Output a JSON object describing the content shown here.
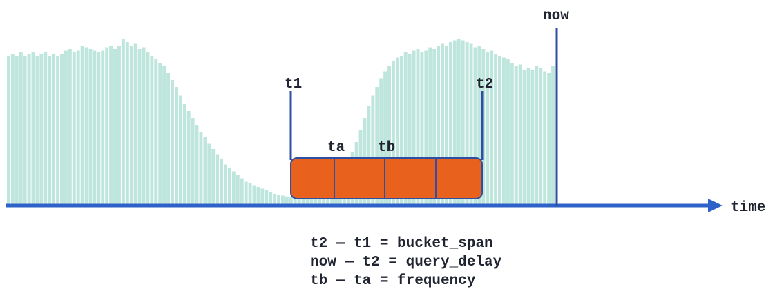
{
  "labels": {
    "now": "now",
    "t1": "t1",
    "t2": "t2",
    "ta": "ta",
    "tb": "tb",
    "time": "time"
  },
  "equations": [
    "t2 — t1 = bucket_span",
    "now — t2 = query_delay",
    "tb — ta = frequency"
  ],
  "histogram": {
    "bar_color": "#bfe6dc",
    "bar_levels": [
      0.86,
      0.87,
      0.86,
      0.88,
      0.86,
      0.87,
      0.88,
      0.86,
      0.87,
      0.88,
      0.86,
      0.87,
      0.86,
      0.87,
      0.89,
      0.9,
      0.88,
      0.89,
      0.92,
      0.91,
      0.9,
      0.89,
      0.88,
      0.89,
      0.91,
      0.92,
      0.9,
      0.92,
      0.96,
      0.94,
      0.92,
      0.93,
      0.9,
      0.91,
      0.88,
      0.86,
      0.84,
      0.82,
      0.8,
      0.76,
      0.72,
      0.68,
      0.63,
      0.58,
      0.54,
      0.5,
      0.46,
      0.42,
      0.39,
      0.35,
      0.32,
      0.29,
      0.26,
      0.23,
      0.21,
      0.19,
      0.17,
      0.15,
      0.13,
      0.12,
      0.11,
      0.1,
      0.09,
      0.08,
      0.07,
      0.06,
      0.055,
      0.05,
      0.045,
      0.04,
      0.04,
      0.04,
      0.04,
      0.04,
      0.045,
      0.05,
      0.06,
      0.07,
      0.08,
      0.1,
      0.12,
      0.15,
      0.19,
      0.24,
      0.3,
      0.36,
      0.43,
      0.5,
      0.57,
      0.63,
      0.68,
      0.73,
      0.77,
      0.8,
      0.83,
      0.85,
      0.86,
      0.88,
      0.87,
      0.89,
      0.9,
      0.88,
      0.89,
      0.91,
      0.9,
      0.92,
      0.93,
      0.92,
      0.94,
      0.95,
      0.96,
      0.95,
      0.94,
      0.93,
      0.91,
      0.92,
      0.9,
      0.88,
      0.89,
      0.87,
      0.86,
      0.85,
      0.84,
      0.82,
      0.8,
      0.81,
      0.78,
      0.79,
      0.78,
      0.8,
      0.79,
      0.77,
      0.76,
      0.8
    ]
  },
  "colors": {
    "axis": "#2f62c9",
    "marker": "#2f4fa2",
    "window_fill": "#e8621d",
    "window_stroke": "#2f4fa2",
    "text": "#1f2430"
  }
}
